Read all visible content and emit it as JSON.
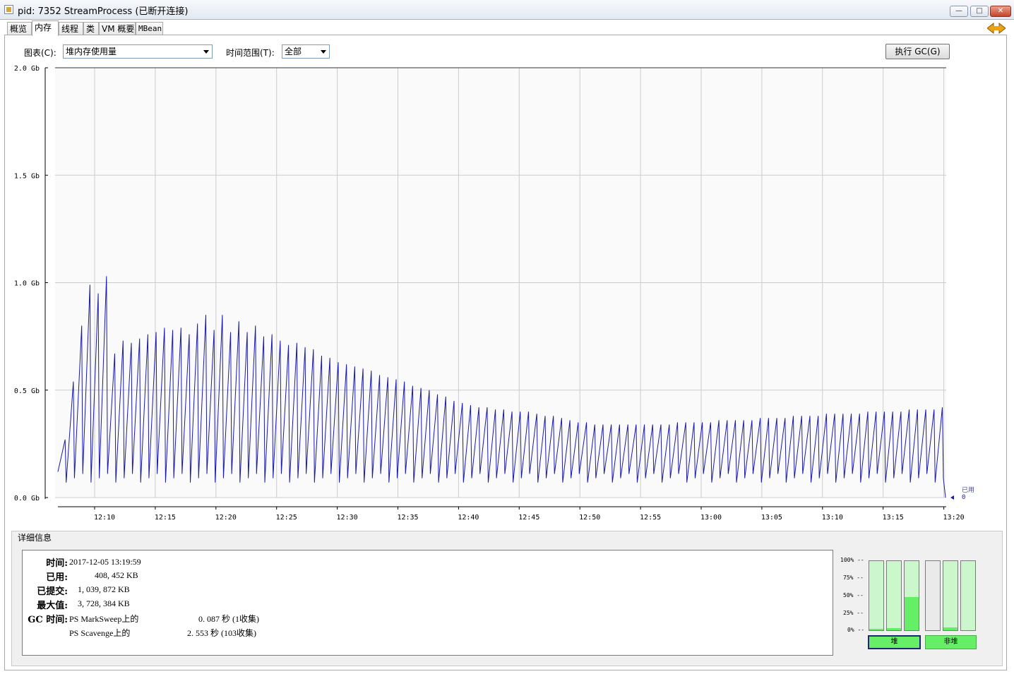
{
  "window": {
    "title": "pid: 7352 StreamProcess (已断开连接)"
  },
  "tabs": [
    {
      "label": "概览"
    },
    {
      "label": "内存"
    },
    {
      "label": "线程"
    },
    {
      "label": "类"
    },
    {
      "label": "VM 概要"
    },
    {
      "label": "MBean"
    }
  ],
  "controls": {
    "chart_label": "图表(C):",
    "chart_value": "堆内存使用量",
    "range_label": "时间范围(T):",
    "range_value": "全部",
    "gc_button": "执行 GC(G)"
  },
  "chart_data": {
    "type": "line",
    "title": "",
    "xlabel": "",
    "ylabel": "",
    "y_ticks": [
      "0.0 Gb",
      "0.5 Gb",
      "1.0 Gb",
      "1.5 Gb",
      "2.0 Gb"
    ],
    "ylim": [
      0,
      2.0
    ],
    "x_ticks": [
      "12:10",
      "12:15",
      "12:20",
      "12:25",
      "12:30",
      "12:35",
      "12:40",
      "12:45",
      "12:50",
      "12:55",
      "13:00",
      "13:05",
      "13:10",
      "13:15",
      "13:20"
    ],
    "grid": true,
    "series": [
      {
        "name": "已用",
        "color": "#1a1aaa",
        "end_value_label": "0",
        "sawtooth_peaks_gb": [
          0.27,
          0.54,
          0.8,
          0.99,
          0.95,
          1.03,
          0.67,
          0.73,
          0.72,
          0.74,
          0.76,
          0.77,
          0.79,
          0.78,
          0.79,
          0.76,
          0.81,
          0.85,
          0.78,
          0.85,
          0.77,
          0.82,
          0.77,
          0.8,
          0.75,
          0.76,
          0.73,
          0.71,
          0.72,
          0.7,
          0.69,
          0.66,
          0.65,
          0.63,
          0.62,
          0.61,
          0.6,
          0.59,
          0.57,
          0.56,
          0.55,
          0.54,
          0.52,
          0.51,
          0.5,
          0.48,
          0.47,
          0.45,
          0.44,
          0.43,
          0.42,
          0.42,
          0.41,
          0.41,
          0.4,
          0.4,
          0.4,
          0.39,
          0.38,
          0.38,
          0.37,
          0.36,
          0.35,
          0.35,
          0.34,
          0.34,
          0.34,
          0.34,
          0.34,
          0.34,
          0.34,
          0.34,
          0.34,
          0.34,
          0.35,
          0.35,
          0.35,
          0.35,
          0.35,
          0.36,
          0.36,
          0.36,
          0.36,
          0.36,
          0.37,
          0.37,
          0.37,
          0.37,
          0.38,
          0.38,
          0.38,
          0.38,
          0.39,
          0.39,
          0.39,
          0.39,
          0.39,
          0.4,
          0.4,
          0.4,
          0.4,
          0.4,
          0.41,
          0.41,
          0.41,
          0.41,
          0.42
        ],
        "sawtooth_trough_gb": 0.07
      }
    ],
    "legend": "right-bottom"
  },
  "details": {
    "section_title": "详细信息",
    "time_label": "时间:",
    "time_value": "2017-12-05 13:19:59",
    "used_label": "已用:",
    "used_value": "408, 452 KB",
    "committed_label": "已提交:",
    "committed_value": "1, 039, 872 KB",
    "max_label": "最大值:",
    "max_value": "3, 728, 384 KB",
    "gc_label": "GC 时间:",
    "gc_rows": [
      {
        "collector": "PS MarkSweep上的",
        "time": "0. 087  秒 (1收集)"
      },
      {
        "collector": "PS Scavenge上的",
        "time": "2. 553  秒 (103收集)"
      }
    ]
  },
  "pools": {
    "ticks": [
      "100% --",
      "75% --",
      "50% --",
      "25% --",
      "0% --"
    ],
    "heap_label": "堆",
    "nonheap_label": "非堆",
    "heap_fill_fractions": [
      0.02,
      0.03,
      0.48
    ],
    "nonheap_fill_fractions": [
      0.0,
      0.04,
      0.0
    ]
  }
}
